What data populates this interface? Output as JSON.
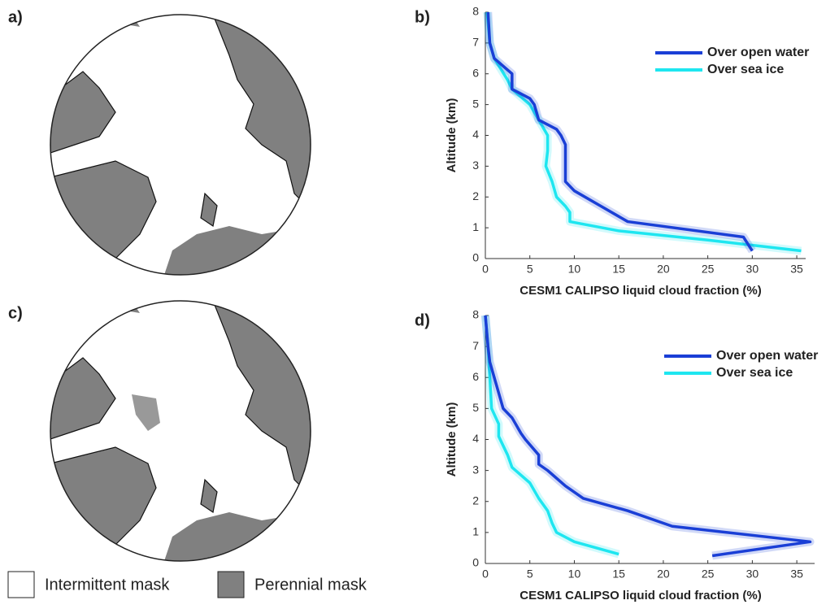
{
  "maps": [
    {
      "label": "a)"
    },
    {
      "label": "c)"
    }
  ],
  "map_legend": {
    "items": [
      "Intermittent mask",
      "Perennial mask"
    ]
  },
  "chart_data": [
    {
      "type": "line",
      "label": "b)",
      "xlabel": "CESM1 CALIPSO liquid cloud fraction (%)",
      "ylabel": "Altitude (km)",
      "xlim": [
        0,
        36
      ],
      "xticks": [
        0,
        5,
        10,
        15,
        20,
        25,
        30,
        35
      ],
      "ylim": [
        0,
        8
      ],
      "yticks": [
        0,
        1,
        2,
        3,
        4,
        5,
        6,
        7,
        8
      ],
      "legend": "upper right",
      "series": [
        {
          "name": "Over open water",
          "color": "#1a3fd6",
          "x": [
            30,
            29,
            16,
            13,
            10,
            9,
            9,
            9,
            8.5,
            8,
            6,
            5.5,
            5,
            3,
            3,
            1,
            0.5,
            0.3
          ],
          "y": [
            0.25,
            0.7,
            1.2,
            1.7,
            2.2,
            2.5,
            3,
            3.7,
            4,
            4.2,
            4.5,
            5,
            5.2,
            5.5,
            6,
            6.5,
            7,
            8
          ]
        },
        {
          "name": "Over sea ice",
          "color": "#1ee6f0",
          "x": [
            35.5,
            25,
            15,
            9.5,
            9.5,
            9,
            8,
            7.5,
            6.8,
            7,
            7,
            6,
            5,
            3,
            2.5,
            1,
            0.5,
            0.2
          ],
          "y": [
            0.25,
            0.6,
            0.9,
            1.2,
            1.5,
            1.7,
            2,
            2.5,
            3,
            3.5,
            4,
            4.5,
            5,
            5.5,
            5.8,
            6.5,
            7,
            8
          ]
        }
      ]
    },
    {
      "type": "line",
      "label": "d)",
      "xlabel": "CESM1 CALIPSO liquid cloud fraction (%)",
      "ylabel": "Altitude (km)",
      "xlim": [
        0,
        37
      ],
      "xticks": [
        0,
        5,
        10,
        15,
        20,
        25,
        30,
        35
      ],
      "ylim": [
        0,
        8
      ],
      "yticks": [
        0,
        1,
        2,
        3,
        4,
        5,
        6,
        7,
        8
      ],
      "legend": "upper right",
      "series": [
        {
          "name": "Over open water",
          "color": "#1a3fd6",
          "x": [
            25.5,
            36.5,
            21,
            16,
            11,
            9,
            7,
            6,
            6,
            4.5,
            4,
            3,
            2,
            1.5,
            1,
            0.5,
            0.3,
            0
          ],
          "y": [
            0.25,
            0.7,
            1.2,
            1.7,
            2.1,
            2.5,
            3,
            3.2,
            3.5,
            4,
            4.2,
            4.7,
            5,
            5.5,
            6,
            6.5,
            7,
            8
          ]
        },
        {
          "name": "Over sea ice",
          "color": "#1ee6f0",
          "x": [
            15,
            10,
            8,
            7.5,
            7,
            6,
            5,
            3,
            2.5,
            1.5,
            1.5,
            0.7,
            0.5,
            0.3,
            0
          ],
          "y": [
            0.3,
            0.7,
            1,
            1.3,
            1.7,
            2.1,
            2.6,
            3.1,
            3.5,
            4.1,
            4.5,
            5,
            6,
            7,
            8
          ]
        }
      ]
    }
  ]
}
